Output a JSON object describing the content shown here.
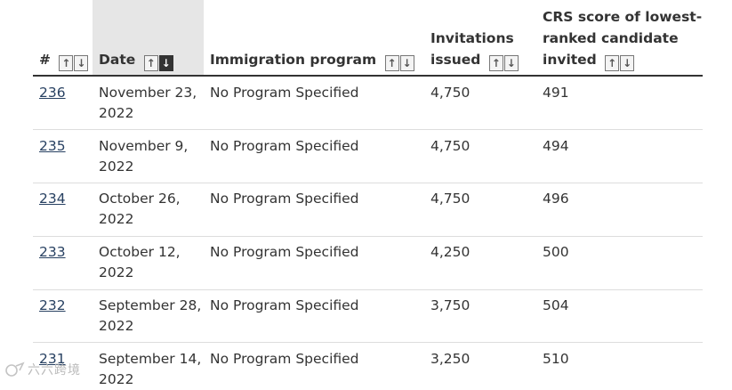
{
  "table": {
    "headers": {
      "number": "#",
      "date": "Date",
      "program": "Immigration program",
      "invitations_line1": "Invitations",
      "invitations_line2": "issued",
      "crs_line1": "CRS score of lowest-",
      "crs_line2": "ranked candidate",
      "crs_line3": "invited"
    },
    "sort_icons": {
      "up": "arrow-up-icon",
      "down": "arrow-down-icon",
      "active_column": "Date",
      "active_direction": "down"
    },
    "rows": [
      {
        "number": "236",
        "date_line1": "November 23,",
        "date_line2": "2022",
        "program": "No Program Specified",
        "invitations": "4,750",
        "crs": "491"
      },
      {
        "number": "235",
        "date_line1": "November 9,",
        "date_line2": "2022",
        "program": "No Program Specified",
        "invitations": "4,750",
        "crs": "494"
      },
      {
        "number": "234",
        "date_line1": "October 26,",
        "date_line2": "2022",
        "program": "No Program Specified",
        "invitations": "4,750",
        "crs": "496"
      },
      {
        "number": "233",
        "date_line1": "October 12,",
        "date_line2": "2022",
        "program": "No Program Specified",
        "invitations": "4,250",
        "crs": "500"
      },
      {
        "number": "232",
        "date_line1": "September 28,",
        "date_line2": "2022",
        "program": "No Program Specified",
        "invitations": "3,750",
        "crs": "504"
      },
      {
        "number": "231",
        "date_line1": "September 14,",
        "date_line2": "2022",
        "program": "No Program Specified",
        "invitations": "3,250",
        "crs": "510"
      }
    ]
  },
  "watermark": {
    "text": "六六跨境"
  },
  "colors": {
    "link": "#284162",
    "text": "#333333",
    "active_header_bg": "#e6e6e6"
  }
}
